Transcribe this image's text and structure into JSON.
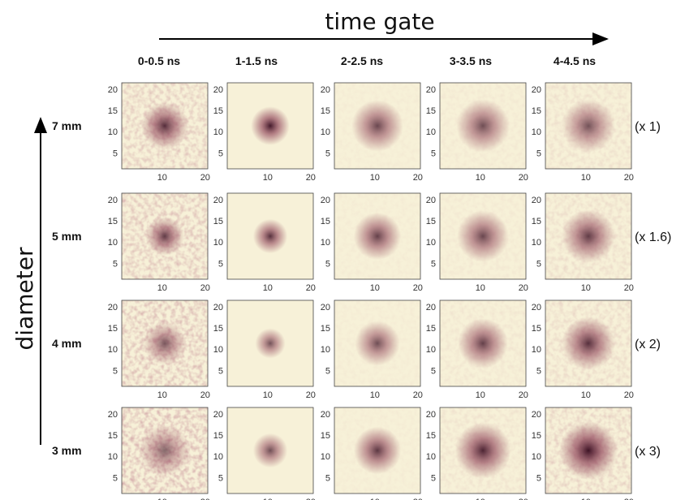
{
  "figure": {
    "top_label": "time gate",
    "side_label": "diameter",
    "columns": [
      "0-0.5 ns",
      "1-1.5 ns",
      "2-2.5 ns",
      "3-3.5 ns",
      "4-4.5 ns"
    ],
    "rows": [
      {
        "label": "7 mm",
        "scale": "(x 1)"
      },
      {
        "label": "5 mm",
        "scale": "(x 1.6)"
      },
      {
        "label": "4 mm",
        "scale": "(x 2)"
      },
      {
        "label": "3 mm",
        "scale": "(x 3)"
      }
    ],
    "y_ticks": [
      "20",
      "15",
      "10",
      "5"
    ],
    "x_ticks": [
      "10",
      "20"
    ],
    "colors": {
      "background": "#f7f1d8",
      "spot_core": "#3a0f22",
      "spot_mid": "#8a3a52",
      "frame": "#444444"
    },
    "spot_intensity": [
      [
        0.85,
        0.95,
        0.75,
        0.72,
        0.7
      ],
      [
        0.8,
        0.85,
        0.78,
        0.75,
        0.8
      ],
      [
        0.65,
        0.7,
        0.72,
        0.78,
        0.85
      ],
      [
        0.6,
        0.72,
        0.82,
        0.9,
        0.98
      ]
    ],
    "spot_spread": [
      [
        0.55,
        0.45,
        0.6,
        0.62,
        0.62
      ],
      [
        0.45,
        0.4,
        0.55,
        0.6,
        0.62
      ],
      [
        0.5,
        0.35,
        0.52,
        0.58,
        0.62
      ],
      [
        0.6,
        0.4,
        0.55,
        0.65,
        0.68
      ]
    ],
    "noise_level": [
      [
        0.7,
        0.05,
        0.1,
        0.15,
        0.3
      ],
      [
        0.8,
        0.05,
        0.1,
        0.15,
        0.35
      ],
      [
        0.9,
        0.05,
        0.1,
        0.2,
        0.4
      ],
      [
        1.0,
        0.05,
        0.1,
        0.25,
        0.55
      ]
    ]
  }
}
